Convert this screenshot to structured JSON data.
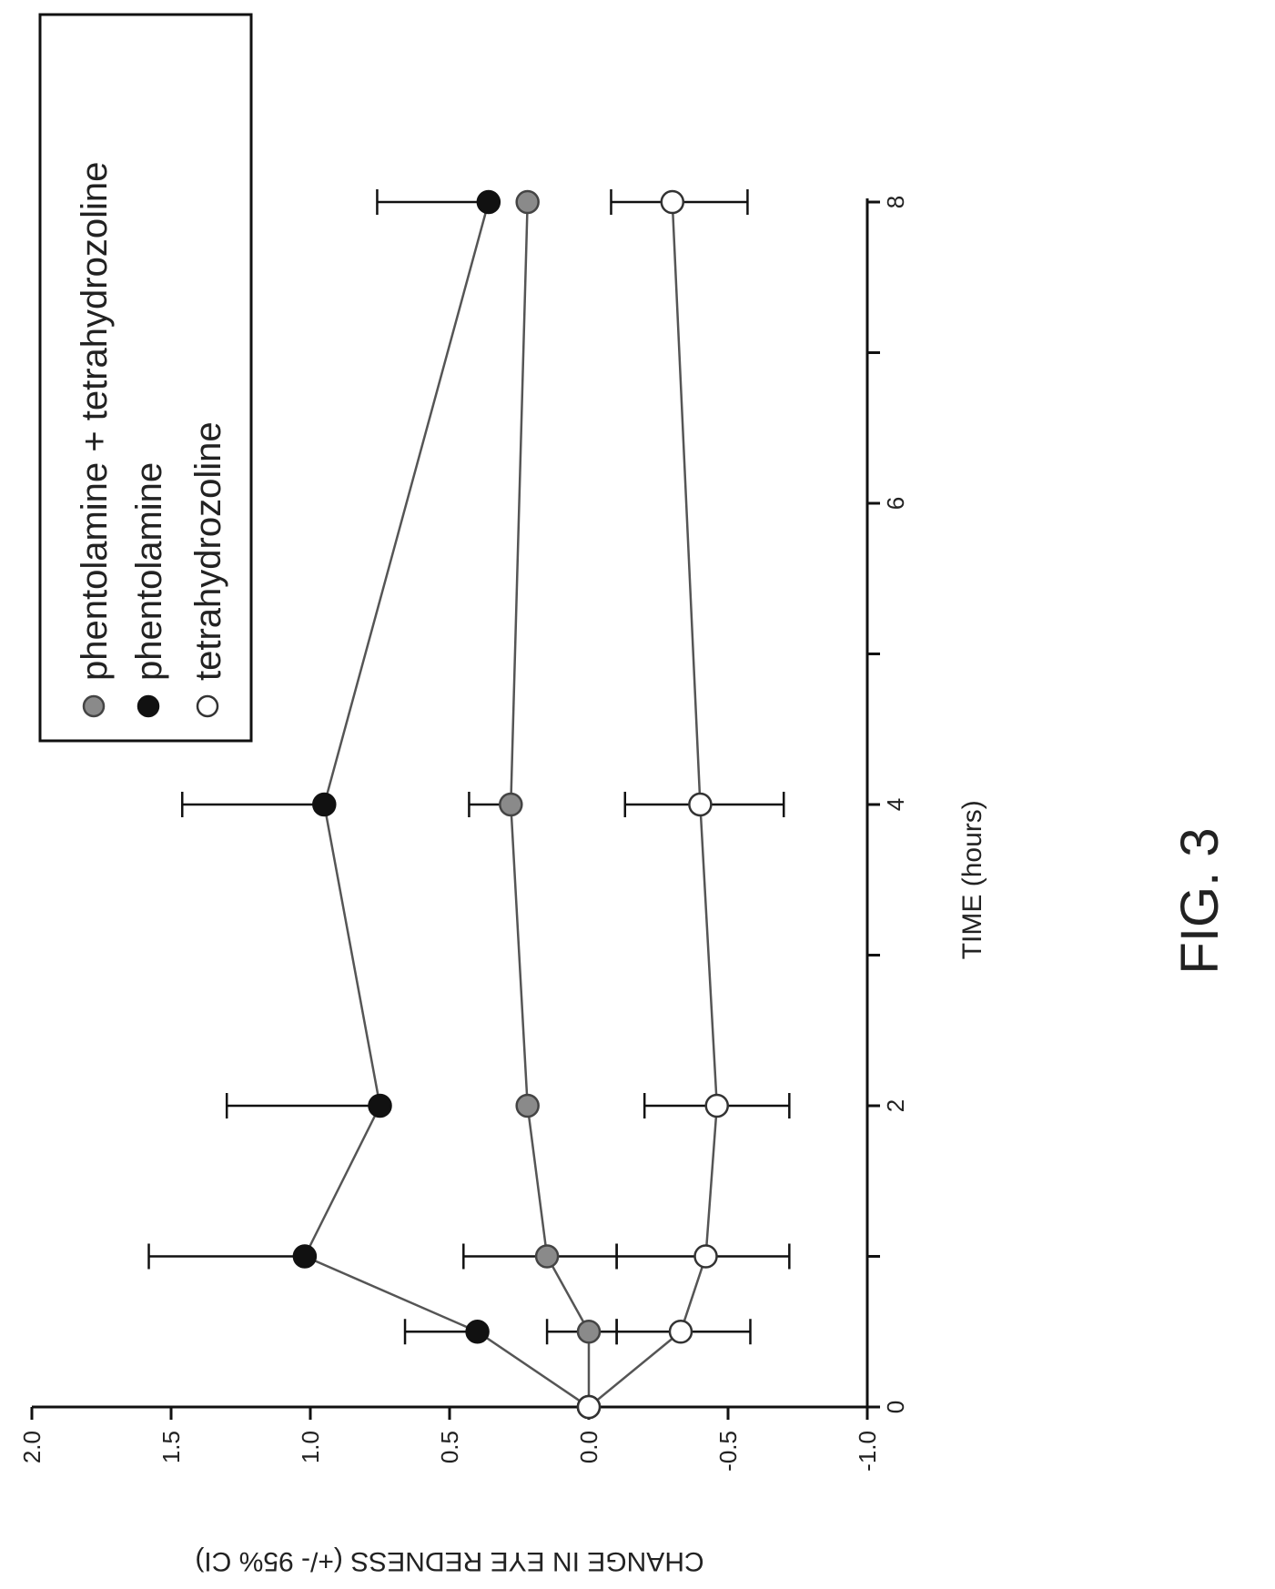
{
  "figure_label": "FIG. 3",
  "chart_data": {
    "type": "line",
    "xlabel": "TIME (hours)",
    "ylabel": "CHANGE IN EYE REDNESS (+/- 95% CI)",
    "xlim": [
      0,
      8
    ],
    "ylim": [
      -1.0,
      2.0
    ],
    "x_ticks": [
      0,
      1,
      2,
      3,
      4,
      5,
      6,
      7,
      8
    ],
    "x_tick_labels": [
      "0",
      "",
      "2",
      "",
      "4",
      "",
      "6",
      "",
      "8"
    ],
    "y_ticks": [
      -1.0,
      -0.5,
      0.0,
      0.5,
      1.0,
      1.5,
      2.0
    ],
    "y_tick_labels": [
      "-1.0",
      "-0.5",
      "0.0",
      "0.5",
      "1.0",
      "1.5",
      "2.0"
    ],
    "grid": false,
    "legend_position": "top-right (rotated)",
    "orientation": "rotated 90 degrees clockwise on the page",
    "series": [
      {
        "name": "phentolamine + tetrahydrozoline",
        "marker": "circle-gray",
        "color": "#888888",
        "x": [
          0,
          0.5,
          1,
          2,
          4,
          8
        ],
        "y": [
          0.0,
          0.0,
          0.15,
          0.22,
          0.28,
          0.22
        ],
        "ci_low": [
          0.0,
          -0.1,
          -0.1,
          null,
          null,
          null
        ],
        "ci_high": [
          0.0,
          0.15,
          0.45,
          null,
          0.43,
          null
        ]
      },
      {
        "name": "phentolamine",
        "marker": "circle-filled",
        "color": "#111111",
        "x": [
          0,
          0.5,
          1,
          2,
          4,
          8
        ],
        "y": [
          0.0,
          0.4,
          1.02,
          0.75,
          0.95,
          0.36
        ],
        "ci_low": [
          0.0,
          null,
          null,
          null,
          null,
          null
        ],
        "ci_high": [
          0.0,
          0.66,
          1.58,
          1.3,
          1.46,
          0.76
        ]
      },
      {
        "name": "tetrahydrozoline",
        "marker": "circle-open",
        "color": "#555555",
        "x": [
          0,
          0.5,
          1,
          2,
          4,
          8
        ],
        "y": [
          0.0,
          -0.33,
          -0.42,
          -0.46,
          -0.4,
          -0.3
        ],
        "ci_low": [
          0.0,
          -0.58,
          -0.72,
          -0.72,
          -0.7,
          -0.57
        ],
        "ci_high": [
          0.0,
          -0.1,
          -0.1,
          -0.2,
          -0.13,
          -0.08
        ]
      }
    ]
  }
}
